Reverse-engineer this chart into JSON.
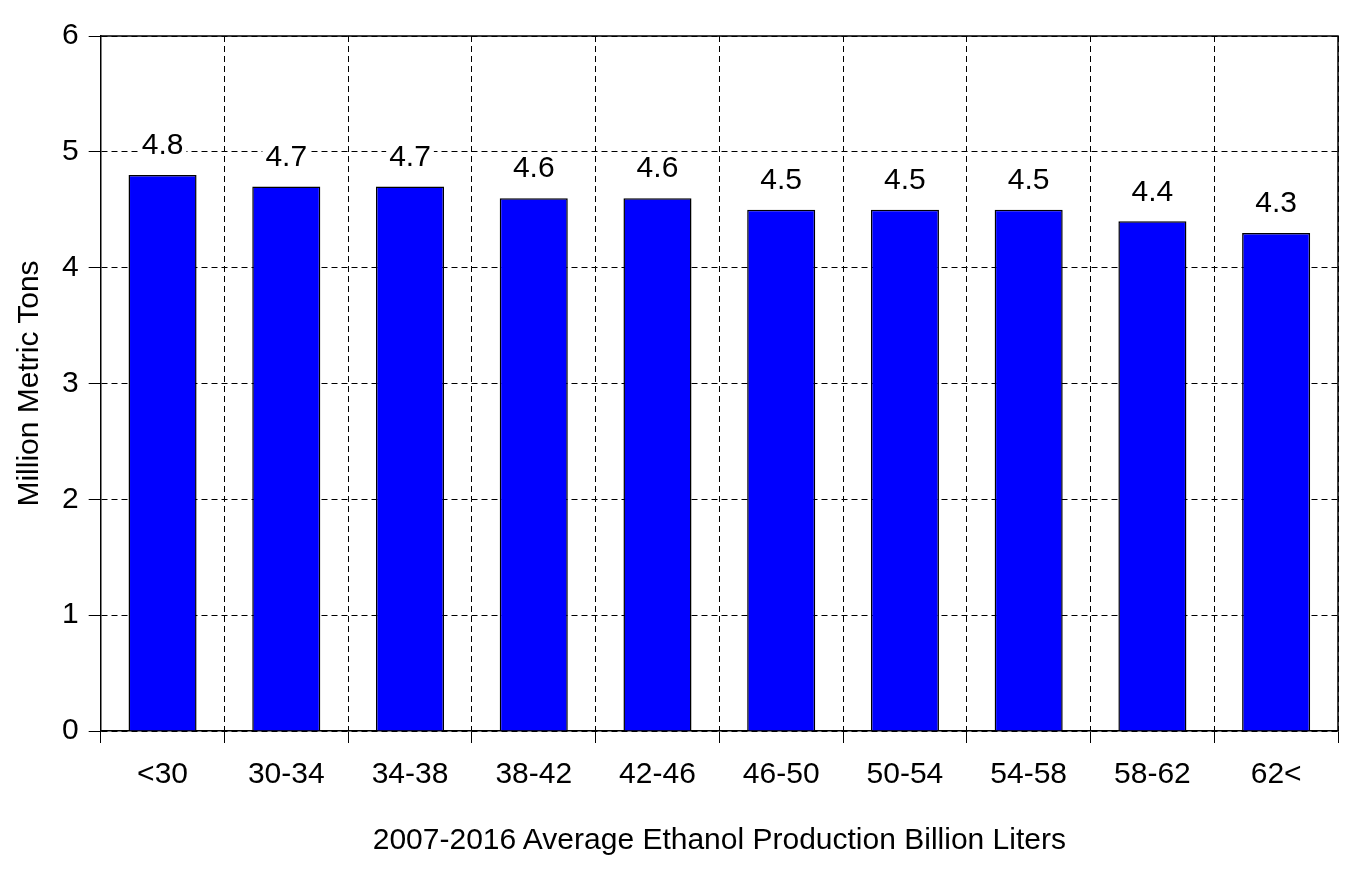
{
  "chart_data": {
    "type": "bar",
    "categories": [
      "<30",
      "30-34",
      "34-38",
      "38-42",
      "42-46",
      "46-50",
      "50-54",
      "54-58",
      "58-62",
      "62<"
    ],
    "values": [
      4.8,
      4.7,
      4.7,
      4.6,
      4.6,
      4.5,
      4.5,
      4.5,
      4.4,
      4.3
    ],
    "color": "#0000ff",
    "xlabel": "2007-2016 Average Ethanol Production Billion Liters",
    "ylabel": "Million Metric Tons",
    "ylim": [
      0,
      6
    ],
    "yticks": [
      0,
      1,
      2,
      3,
      4,
      5,
      6
    ],
    "grid": true,
    "line_style": "dashed",
    "data_labels": true,
    "legend": false
  }
}
